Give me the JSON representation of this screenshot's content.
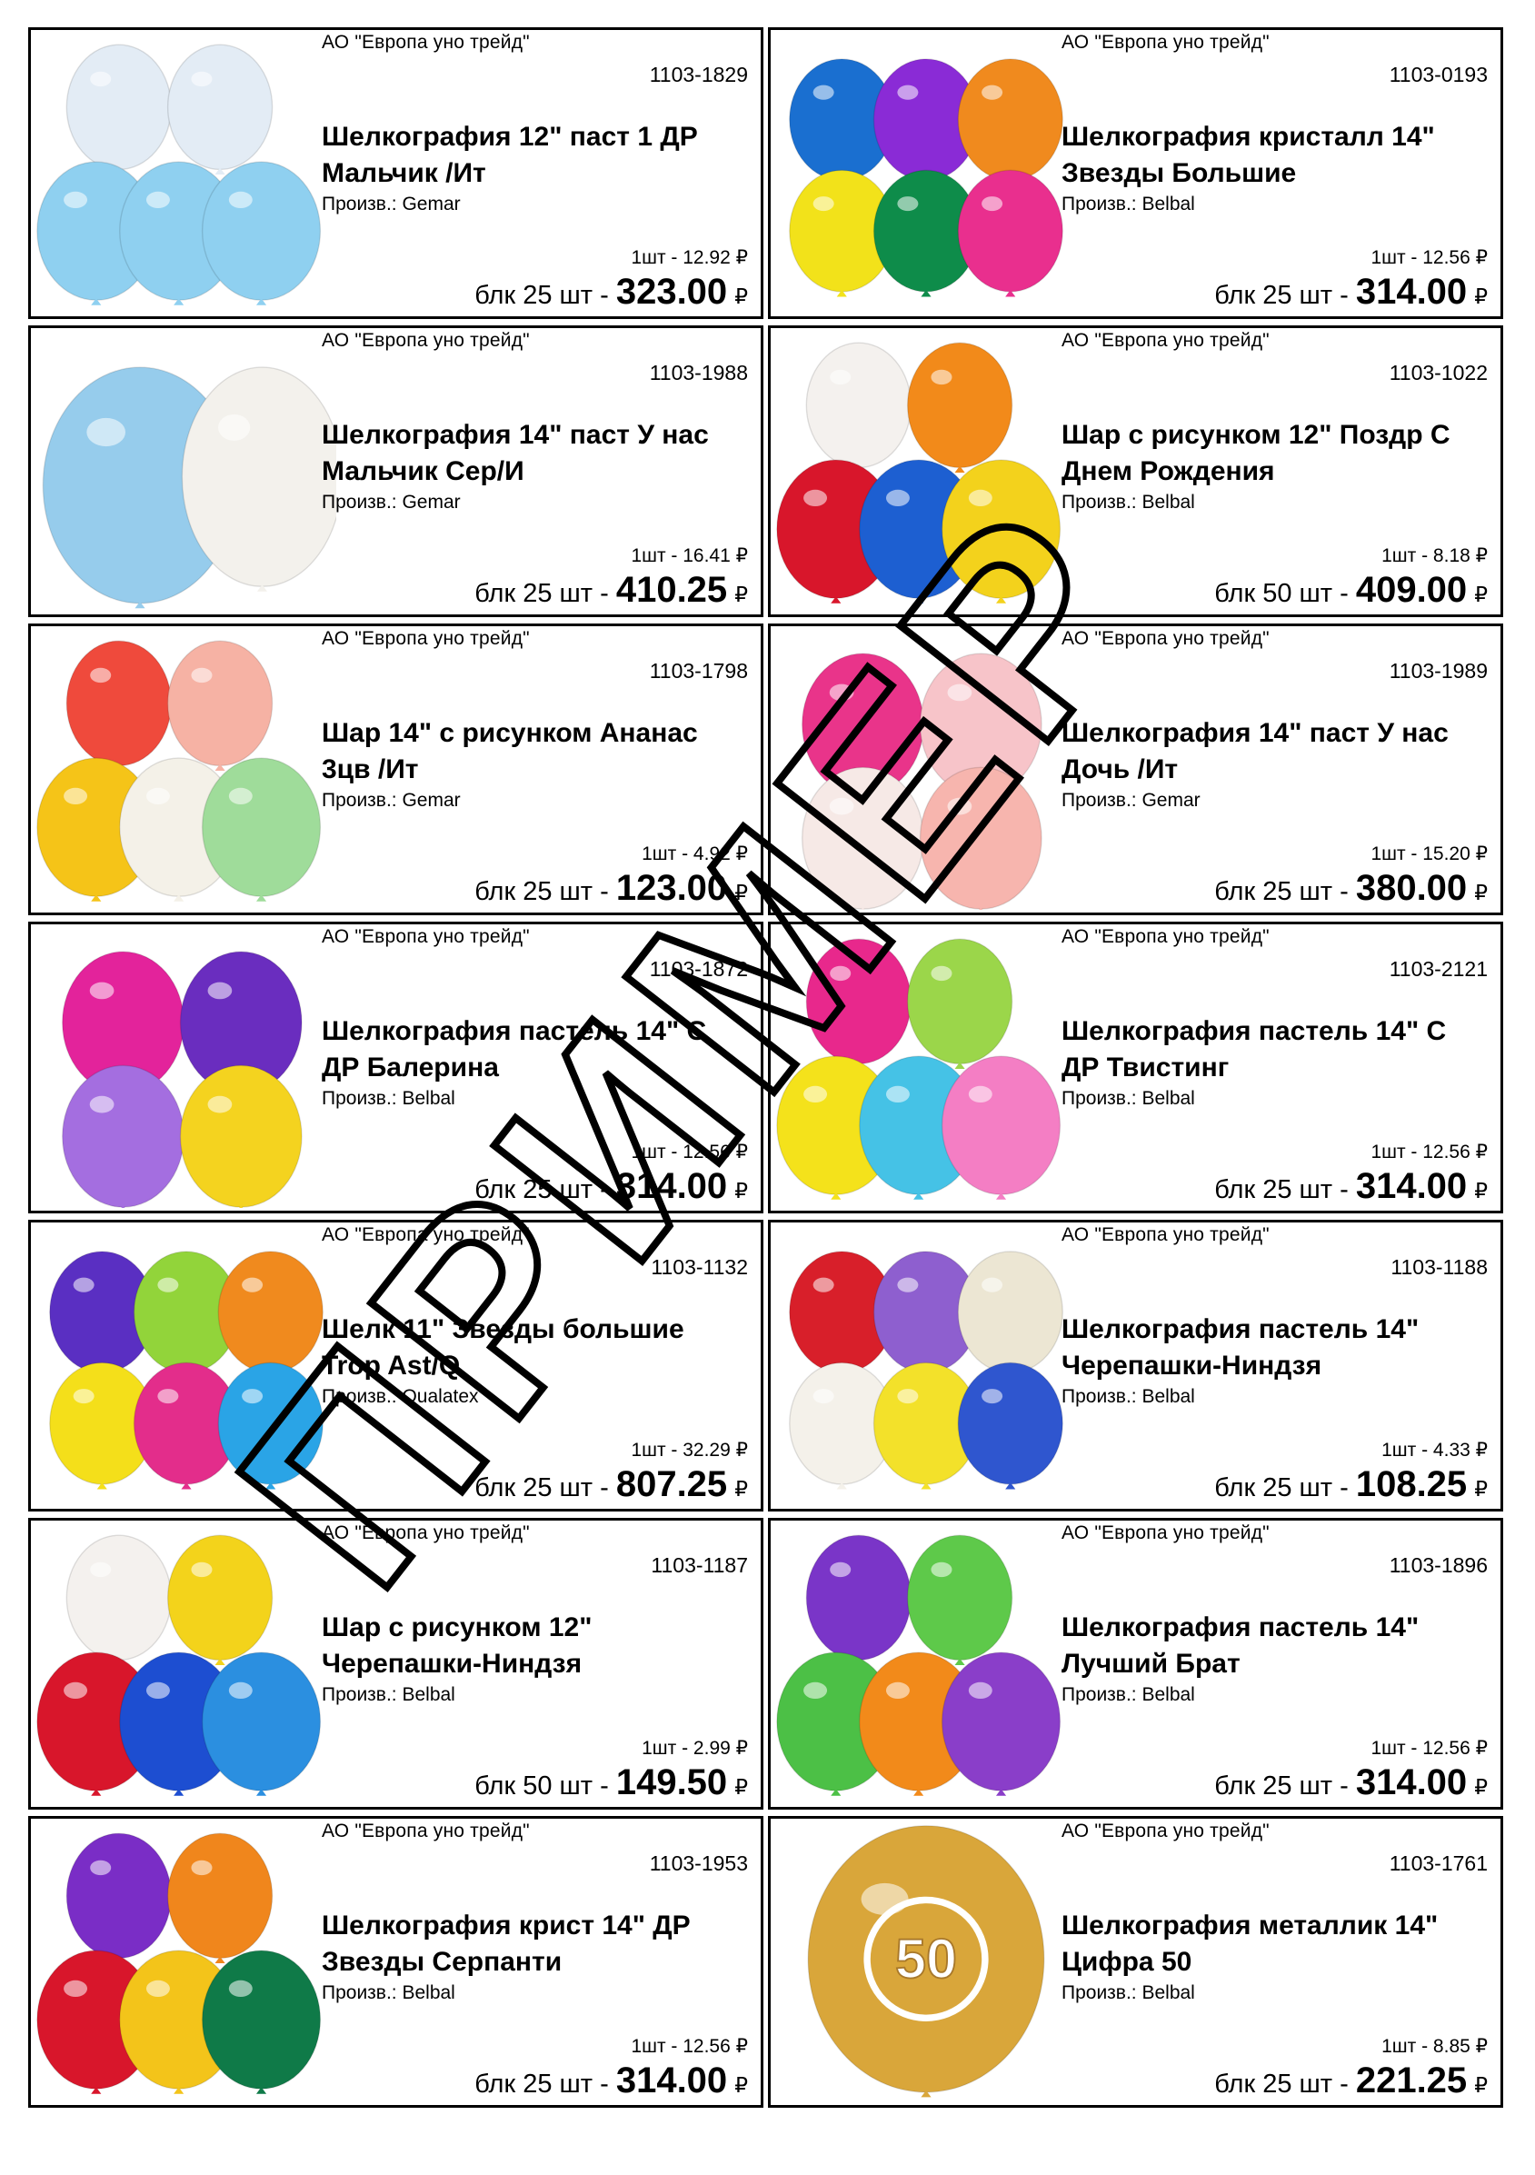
{
  "products": [
    {
      "supplier": "АО \"Европа уно трейд\"",
      "code": "1103-1829",
      "name": "Шелкография 12\" паст 1 ДР Мальчик /Ит",
      "maker": "Произв.: Gemar",
      "unit_price": "1шт - 12.92 ₽",
      "block_label": "блк 25 шт - ",
      "block_price": "323.00",
      "currency": "₽",
      "balloon_icon": "balloon-cluster-icon",
      "colors": [
        "#e3ecf5",
        "#e3ecf5",
        "#8fd0f0",
        "#8fd0f0",
        "#8fd0f0"
      ]
    },
    {
      "supplier": "АО \"Европа уно трейд\"",
      "code": "1103-0193",
      "name": "Шелкография кристалл 14\" Звезды Большие",
      "maker": "Произв.: Belbal",
      "unit_price": "1шт - 12.56 ₽",
      "block_label": "блк 25 шт - ",
      "block_price": "314.00",
      "currency": "₽",
      "balloon_icon": "balloon-cluster-icon",
      "colors": [
        "#1a6fd0",
        "#8a2bd6",
        "#f08a1e",
        "#f2e21a",
        "#0e8c4a",
        "#e92f8e"
      ]
    },
    {
      "supplier": "АО \"Европа уно трейд\"",
      "code": "1103-1988",
      "name": "Шелкография 14\" паст У нас Мальчик Сер/И",
      "maker": "Произв.: Gemar",
      "unit_price": "1шт - 16.41 ₽",
      "block_label": "блк 25 шт - ",
      "block_price": "410.25",
      "currency": "₽",
      "balloon_icon": "balloon-cluster-icon",
      "colors": [
        "#96ccec",
        "#f3f1ec"
      ]
    },
    {
      "supplier": "АО \"Европа уно трейд\"",
      "code": "1103-1022",
      "name": "Шар с рисунком 12\" Поздр С Днем Рождения",
      "maker": "Произв.: Belbal",
      "unit_price": "1шт - 8.18 ₽",
      "block_label": "блк 50 шт - ",
      "block_price": "409.00",
      "currency": "₽",
      "balloon_icon": "balloon-cluster-icon",
      "colors": [
        "#f4f1ee",
        "#f28a1a",
        "#d8162b",
        "#1d5fd1",
        "#f3d21c"
      ]
    },
    {
      "supplier": "АО \"Европа уно трейд\"",
      "code": "1103-1798",
      "name": "Шар 14\" с рисунком Ананас 3цв /Ит",
      "maker": "Произв.: Gemar",
      "unit_price": "1шт - 4.92 ₽",
      "block_label": "блк 25 шт - ",
      "block_price": "123.00",
      "currency": "₽",
      "balloon_icon": "balloon-cluster-icon",
      "colors": [
        "#ef4a3c",
        "#f6b2a4",
        "#f5c418",
        "#f4f1e8",
        "#9fdc9a"
      ]
    },
    {
      "supplier": "АО \"Европа уно трейд\"",
      "code": "1103-1989",
      "name": "Шелкография 14\" паст У нас Дочь /Ит",
      "maker": "Произв.: Gemar",
      "unit_price": "1шт - 15.20 ₽",
      "block_label": "блк 25 шт - ",
      "block_price": "380.00",
      "currency": "₽",
      "balloon_icon": "balloon-cluster-icon",
      "colors": [
        "#e9348a",
        "#f7c4c9",
        "#f6e9e6",
        "#f7b5ae"
      ]
    },
    {
      "supplier": "АО \"Европа уно трейд\"",
      "code": "1103-1872",
      "name": "Шелкография пастель 14\" С ДР Балерина",
      "maker": "Произв.: Belbal",
      "unit_price": "1шт - 12.56 ₽",
      "block_label": "блк 25 шт - ",
      "block_price": "314.00",
      "currency": "₽",
      "balloon_icon": "balloon-cluster-icon",
      "colors": [
        "#e3239b",
        "#6a2dbf",
        "#a46ee0",
        "#f4d31f"
      ]
    },
    {
      "supplier": "АО \"Европа уно трейд\"",
      "code": "1103-2121",
      "name": "Шелкография пастель 14\" С ДР Твистинг",
      "maker": "Произв.: Belbal",
      "unit_price": "1шт - 12.56 ₽",
      "block_label": "блк 25 шт - ",
      "block_price": "314.00",
      "currency": "₽",
      "balloon_icon": "balloon-cluster-icon",
      "colors": [
        "#e8288c",
        "#9bd64a",
        "#f4e21b",
        "#45c2e6",
        "#f47ec4"
      ]
    },
    {
      "supplier": "АО \"Европа уно трейд\"",
      "code": "1103-1132",
      "name": "Шелк 11\" Звезды большие Trop Ast/Q",
      "maker": "Произв.: Qualatex",
      "unit_price": "1шт - 32.29 ₽",
      "block_label": "блк 25 шт - ",
      "block_price": "807.25",
      "currency": "₽",
      "balloon_icon": "balloon-cluster-icon",
      "colors": [
        "#5a2fc2",
        "#92d43a",
        "#f08a1e",
        "#f4df1a",
        "#e32d8b",
        "#2aa4e6"
      ]
    },
    {
      "supplier": "АО \"Европа уно трейд\"",
      "code": "1103-1188",
      "name": "Шелкография пастель 14\" Черепашки-Ниндзя",
      "maker": "Произв.: Belbal",
      "unit_price": "1шт - 4.33 ₽",
      "block_label": "блк 25 шт - ",
      "block_price": "108.25",
      "currency": "₽",
      "balloon_icon": "balloon-cluster-icon",
      "colors": [
        "#d81f2a",
        "#8e5fcf",
        "#ece6d3",
        "#f4f1ea",
        "#f3e12a",
        "#2f56cf"
      ]
    },
    {
      "supplier": "АО \"Европа уно трейд\"",
      "code": "1103-1187",
      "name": "Шар с рисунком 12\" Черепашки-Ниндзя",
      "maker": "Произв.: Belbal",
      "unit_price": "1шт - 2.99 ₽",
      "block_label": "блк 50 шт - ",
      "block_price": "149.50",
      "currency": "₽",
      "balloon_icon": "balloon-cluster-icon",
      "colors": [
        "#f4f1ee",
        "#f3d31b",
        "#d8162b",
        "#1d4ed1",
        "#2b8fe0"
      ]
    },
    {
      "supplier": "АО \"Европа уно трейд\"",
      "code": "1103-1896",
      "name": "Шелкография пастель 14\" Лучший Брат",
      "maker": "Произв.: Belbal",
      "unit_price": "1шт - 12.56 ₽",
      "block_label": "блк 25 шт - ",
      "block_price": "314.00",
      "currency": "₽",
      "balloon_icon": "balloon-cluster-icon",
      "colors": [
        "#7a35c8",
        "#5ec94a",
        "#4cc046",
        "#f28a1a",
        "#8a3ec9"
      ]
    },
    {
      "supplier": "АО \"Европа уно трейд\"",
      "code": "1103-1953",
      "name": "Шелкография крист 14\" ДР Звезды Серпанти",
      "maker": "Произв.: Belbal",
      "unit_price": "1шт - 12.56 ₽",
      "block_label": "блк 25 шт - ",
      "block_price": "314.00",
      "currency": "₽",
      "balloon_icon": "balloon-cluster-icon",
      "colors": [
        "#7a2dc6",
        "#f0861c",
        "#d8162b",
        "#f3c41a",
        "#0f7a48"
      ]
    },
    {
      "supplier": "АО \"Европа уно трейд\"",
      "code": "1103-1761",
      "name": "Шелкография металлик 14\" Цифра 50",
      "maker": "Произв.: Belbal",
      "unit_price": "1шт - 8.85 ₽",
      "block_label": "блк 25 шт - ",
      "block_price": "221.25",
      "currency": "₽",
      "balloon_icon": "balloon-icon",
      "colors": [
        "#d9a63a"
      ],
      "number_label": "50"
    }
  ],
  "watermark": {
    "text": "ПРИМЕР",
    "color": "#000000"
  }
}
